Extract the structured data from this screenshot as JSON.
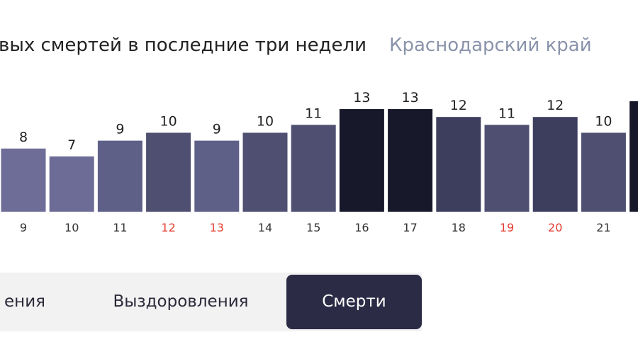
{
  "header": {
    "title": "вых смертей в последние три недели",
    "region": "Краснодарский край"
  },
  "chart_data": {
    "type": "bar",
    "categories": [
      "9",
      "10",
      "11",
      "12",
      "13",
      "14",
      "15",
      "16",
      "17",
      "18",
      "19",
      "20",
      "21",
      null
    ],
    "values": [
      8,
      7,
      9,
      10,
      9,
      10,
      11,
      13,
      13,
      12,
      11,
      12,
      10,
      14
    ],
    "colors": [
      "#6d6d97",
      "#6c6c96",
      "#5f6088",
      "#4f5071",
      "#5f6088",
      "#4f5071",
      "#4f5071",
      "#17182a",
      "#17182a",
      "#3d3e5e",
      "#4f5071",
      "#3d3e5e",
      "#4f5071",
      "#17182a"
    ],
    "category_colors": [
      "#333333",
      "#333333",
      "#333333",
      "#e63b2e",
      "#e63b2e",
      "#333333",
      "#333333",
      "#333333",
      "#333333",
      "#333333",
      "#e63b2e",
      "#e63b2e",
      "#333333",
      "#333333"
    ]
  },
  "tabs": [
    {
      "label": "ения",
      "selected": false
    },
    {
      "label": "Выздоровления",
      "selected": false
    },
    {
      "label": "Смерти",
      "selected": true
    }
  ]
}
